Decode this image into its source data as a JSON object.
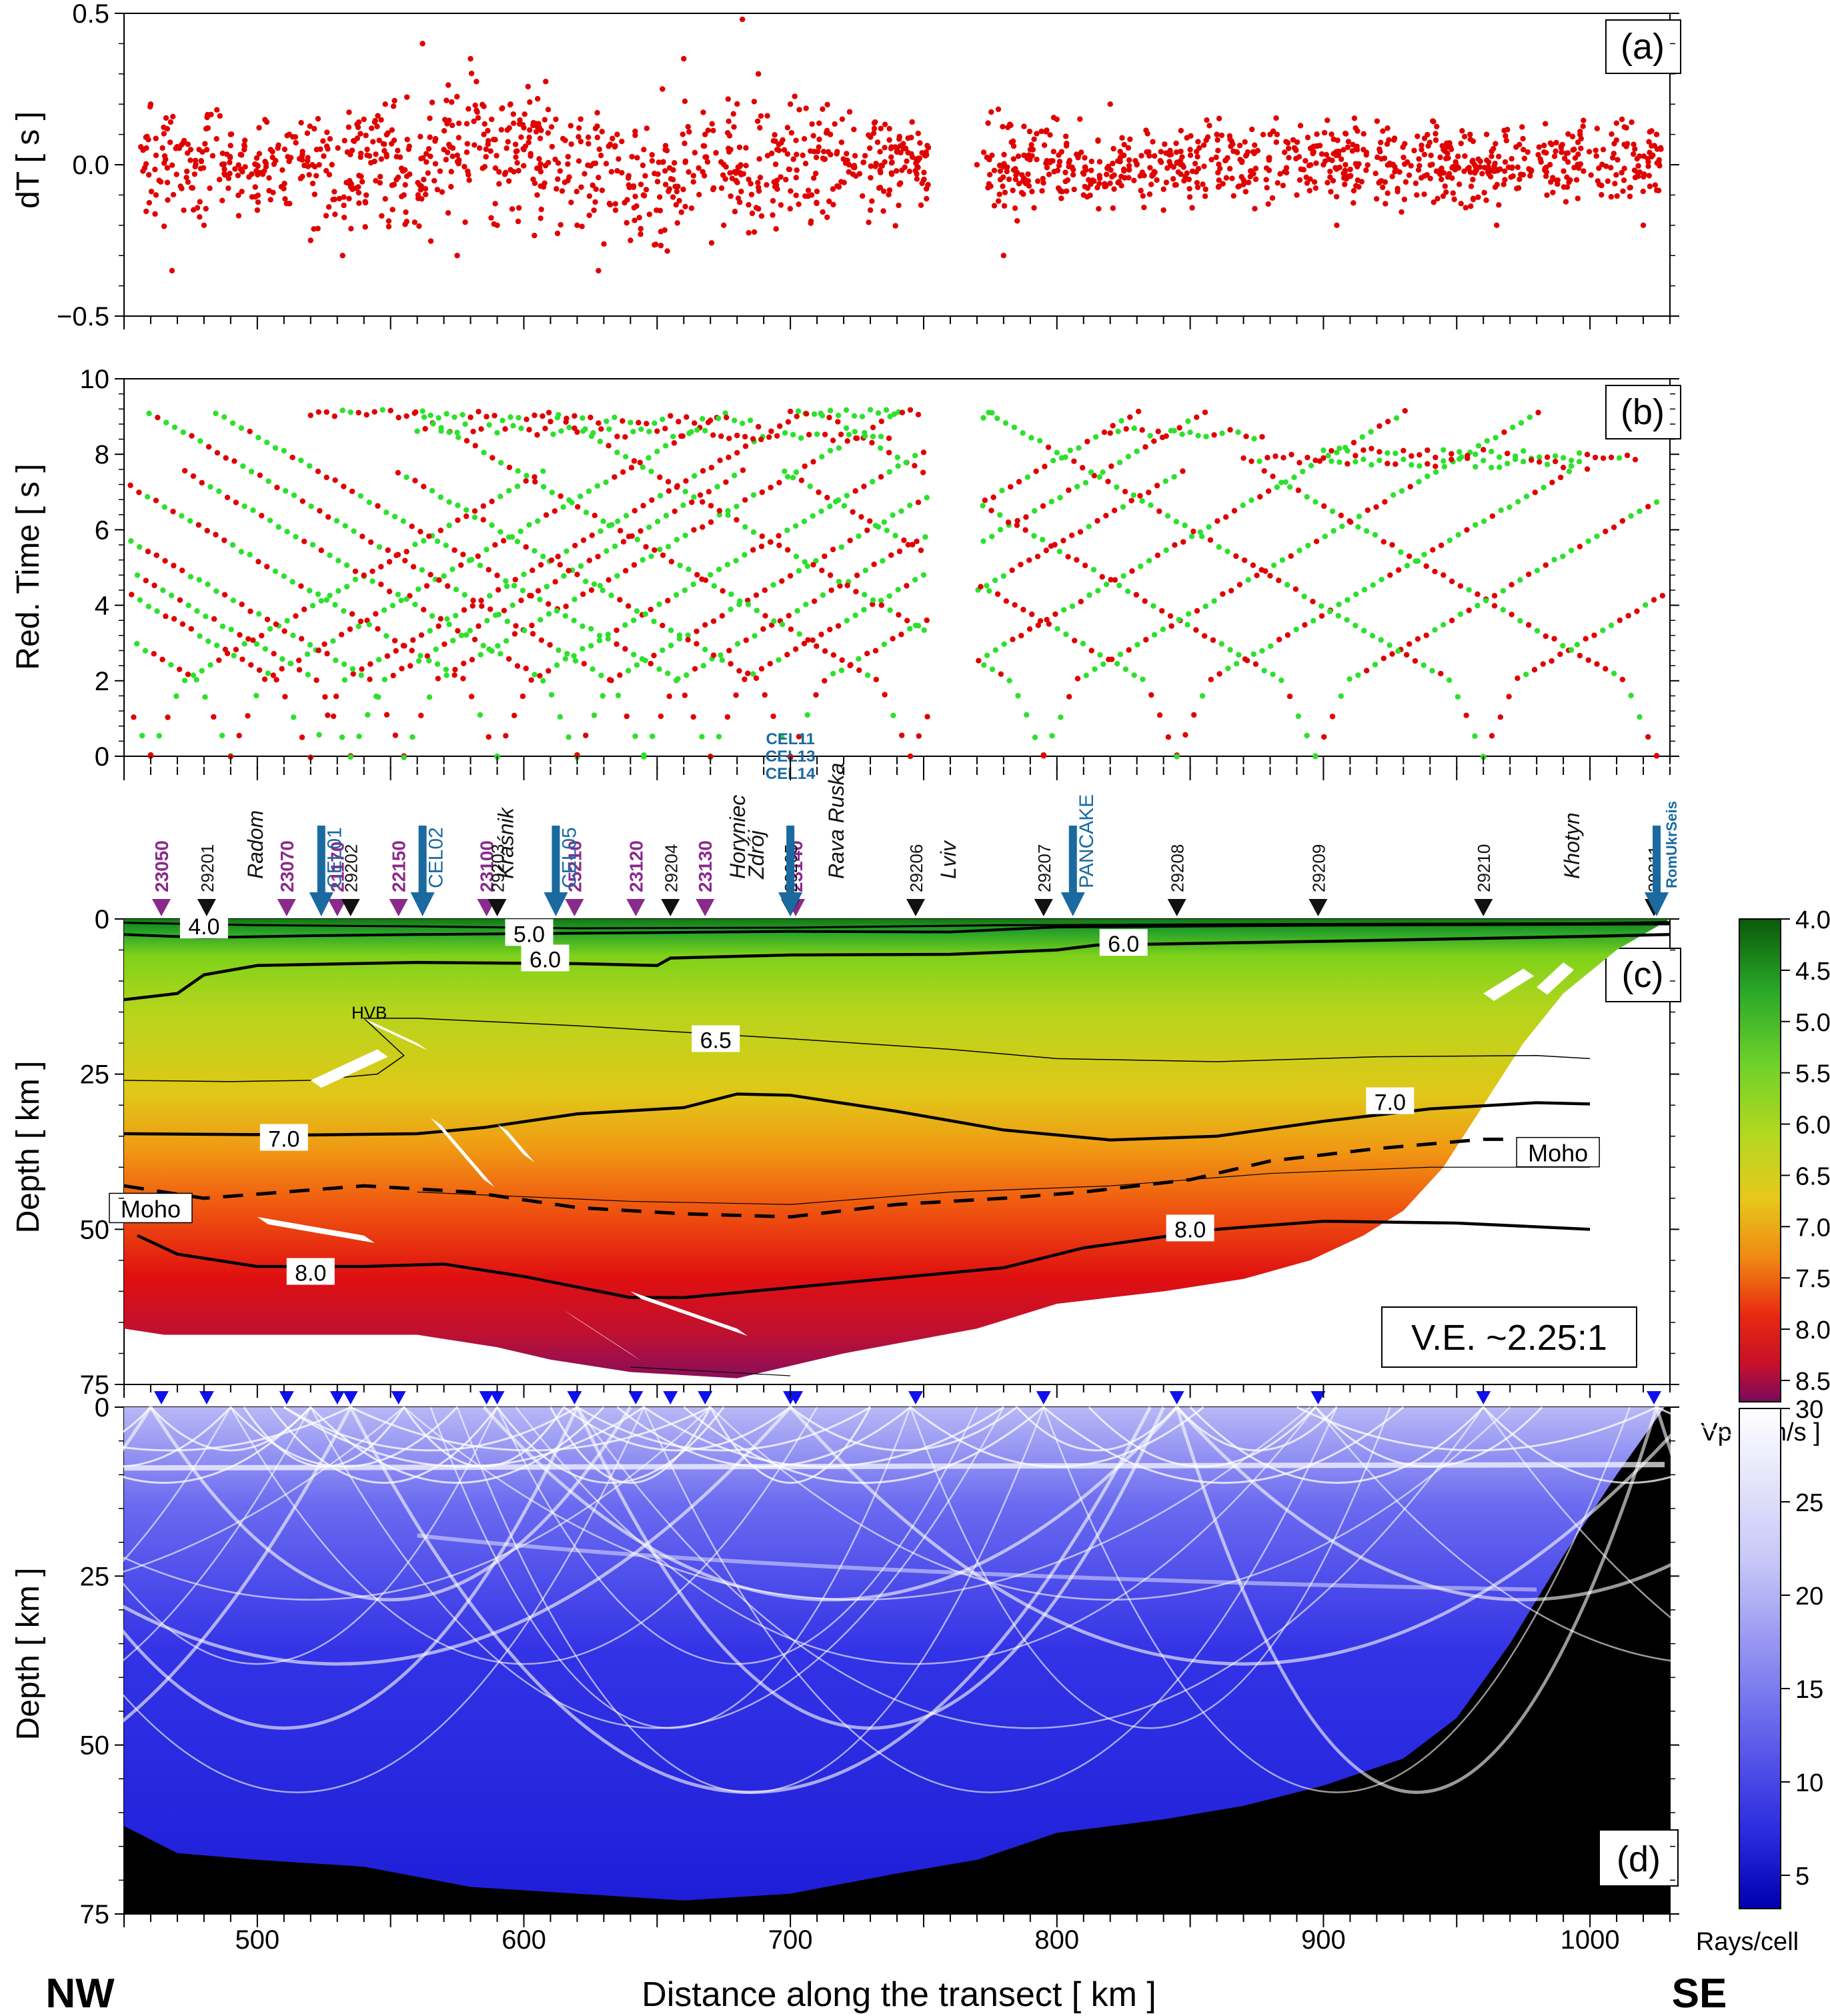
{
  "figure": {
    "x_axis_label": "Distance along the transect  [ km ]",
    "x_ticks": [
      500,
      600,
      700,
      800,
      900,
      1000
    ],
    "direction_left": "NW",
    "direction_right": "SE",
    "xlim": [
      450,
      1030
    ]
  },
  "chart_data": [
    {
      "panel": "(a)",
      "type": "scatter",
      "ylabel": "dT  [ s ]",
      "ylim": [
        -0.5,
        0.5
      ],
      "y_ticks": [
        "0.5",
        "0.0",
        "−0.5"
      ],
      "series": [
        {
          "color": "#e00000",
          "description_points": [
            [
              460,
              0.2
            ],
            [
              462,
              -0.1
            ],
            [
              468,
              -0.35
            ],
            [
              475,
              0.05
            ],
            [
              480,
              -0.2
            ],
            [
              490,
              0.1
            ],
            [
              500,
              -0.15
            ],
            [
              505,
              0.05
            ],
            [
              512,
              0.1
            ],
            [
              520,
              -0.25
            ],
            [
              528,
              0.0
            ],
            [
              532,
              -0.3
            ],
            [
              540,
              0.15
            ],
            [
              548,
              0.2
            ],
            [
              555,
              -0.1
            ],
            [
              562,
              0.4
            ],
            [
              570,
              0.05
            ],
            [
              575,
              -0.3
            ],
            [
              580,
              0.35
            ],
            [
              585,
              0.1
            ],
            [
              590,
              -0.2
            ],
            [
              595,
              0.2
            ],
            [
              600,
              0.05
            ],
            [
              605,
              -0.1
            ],
            [
              612,
              0.15
            ],
            [
              620,
              -0.2
            ],
            [
              628,
              -0.35
            ],
            [
              635,
              0.1
            ],
            [
              640,
              -0.25
            ],
            [
              645,
              0.05
            ],
            [
              652,
              0.25
            ],
            [
              660,
              0.35
            ],
            [
              668,
              0.1
            ],
            [
              675,
              -0.2
            ],
            [
              682,
              0.48
            ],
            [
              688,
              0.3
            ],
            [
              695,
              0.05
            ],
            [
              700,
              0.2
            ],
            [
              708,
              -0.1
            ],
            [
              715,
              0.1
            ],
            [
              722,
              0.0
            ],
            [
              730,
              -0.15
            ],
            [
              740,
              0.05
            ],
            [
              750,
              -0.05
            ],
            [
              770,
              0.0
            ],
            [
              780,
              -0.3
            ],
            [
              790,
              0.05
            ],
            [
              800,
              0.15
            ],
            [
              810,
              -0.1
            ],
            [
              820,
              0.2
            ],
            [
              830,
              0.0
            ],
            [
              840,
              -0.15
            ],
            [
              850,
              0.05
            ],
            [
              860,
              0.1
            ],
            [
              870,
              -0.05
            ],
            [
              880,
              0.1
            ],
            [
              890,
              -0.1
            ],
            [
              900,
              0.0
            ],
            [
              905,
              -0.2
            ],
            [
              915,
              0.05
            ],
            [
              925,
              0.0
            ],
            [
              935,
              -0.1
            ],
            [
              945,
              0.05
            ],
            [
              955,
              0.1
            ],
            [
              965,
              -0.2
            ],
            [
              975,
              0.05
            ],
            [
              985,
              0.0
            ],
            [
              995,
              -0.05
            ],
            [
              1005,
              0.05
            ],
            [
              1012,
              0.15
            ],
            [
              1020,
              -0.2
            ],
            [
              1025,
              0.1
            ]
          ]
        }
      ]
    },
    {
      "panel": "(b)",
      "type": "scatter",
      "ylabel": "Red. Time  [ s ]",
      "ylim": [
        0,
        10
      ],
      "y_ticks": [
        "10",
        "8",
        "6",
        "4",
        "2",
        "0"
      ],
      "series": [
        {
          "name": "",
          "color": "#e00000"
        },
        {
          "name": "",
          "color": "#2ee02e"
        }
      ],
      "source_km": [
        460,
        490,
        520,
        535,
        555,
        590,
        620,
        645,
        670,
        700,
        745,
        795,
        845,
        897,
        960,
        1025
      ]
    },
    {
      "panel": "(c)",
      "type": "heatmap",
      "ylabel": "Depth  [ km ]",
      "ylim": [
        0,
        75
      ],
      "y_ticks": [
        "0",
        "25",
        "50",
        "75"
      ],
      "colorbar_label": "Vp [ km/s ]",
      "colorbar_ticks": [
        "4.0",
        "4.5",
        "5.0",
        "5.5",
        "6.0",
        "6.5",
        "7.0",
        "7.5",
        "8.0",
        "8.5"
      ],
      "ve_label": "V.E. ~2.25:1",
      "contour_labels": [
        "4.0",
        "5.0",
        "6.0",
        "6.0",
        "6.5",
        "7.0",
        "7.0",
        "8.0",
        "8.0"
      ],
      "annotations": [
        "HVB",
        "Moho",
        "Moho"
      ],
      "stations_purple": [
        {
          "label": "23050",
          "km": 464
        },
        {
          "label": "23070",
          "km": 511
        },
        {
          "label": "21170",
          "km": 530
        },
        {
          "label": "22150",
          "km": 553
        },
        {
          "label": "23100",
          "km": 586
        },
        {
          "label": "25210",
          "km": 619
        },
        {
          "label": "23120",
          "km": 642
        },
        {
          "label": "23130",
          "km": 668
        },
        {
          "label": "23140",
          "km": 702
        }
      ],
      "stations_black": [
        {
          "label": "29201",
          "km": 481
        },
        {
          "label": "29202",
          "km": 535
        },
        {
          "label": "29203",
          "km": 590
        },
        {
          "label": "29204",
          "km": 655
        },
        {
          "label": "29205",
          "km": 700
        },
        {
          "label": "29206",
          "km": 747
        },
        {
          "label": "29207",
          "km": 795
        },
        {
          "label": "29208",
          "km": 845
        },
        {
          "label": "29209",
          "km": 898
        },
        {
          "label": "29210",
          "km": 960
        },
        {
          "label": "29211",
          "km": 1024
        }
      ],
      "stations_blue": [
        {
          "label": "CEL01",
          "km": 524
        },
        {
          "label": "CEL02",
          "km": 562
        },
        {
          "label": "CEL05",
          "km": 612
        },
        {
          "label": "CEL11",
          "km": 700
        },
        {
          "label": "CEL13",
          "km": 700
        },
        {
          "label": "CEL14",
          "km": 700
        },
        {
          "label": "PANCAKE",
          "km": 806
        },
        {
          "label": "RomUkrSeis",
          "km": 1025
        }
      ],
      "places": [
        {
          "label": "Radom",
          "km": 502
        },
        {
          "label": "Kraśnik",
          "km": 596
        },
        {
          "label": "Horyniec",
          "km": 683
        },
        {
          "label": "Zdrój",
          "km": 690
        },
        {
          "label": "Rava Ruska",
          "km": 720
        },
        {
          "label": "Lviv",
          "km": 762
        },
        {
          "label": "Khotyn",
          "km": 996
        }
      ]
    },
    {
      "panel": "(d)",
      "type": "heatmap",
      "ylabel": "Depth  [ km ]",
      "ylim": [
        0,
        75
      ],
      "y_ticks": [
        "0",
        "25",
        "50",
        "75"
      ],
      "colorbar_label": "Rays/cell",
      "colorbar_ticks": [
        "30",
        "25",
        "20",
        "15",
        "10",
        "5"
      ]
    }
  ]
}
